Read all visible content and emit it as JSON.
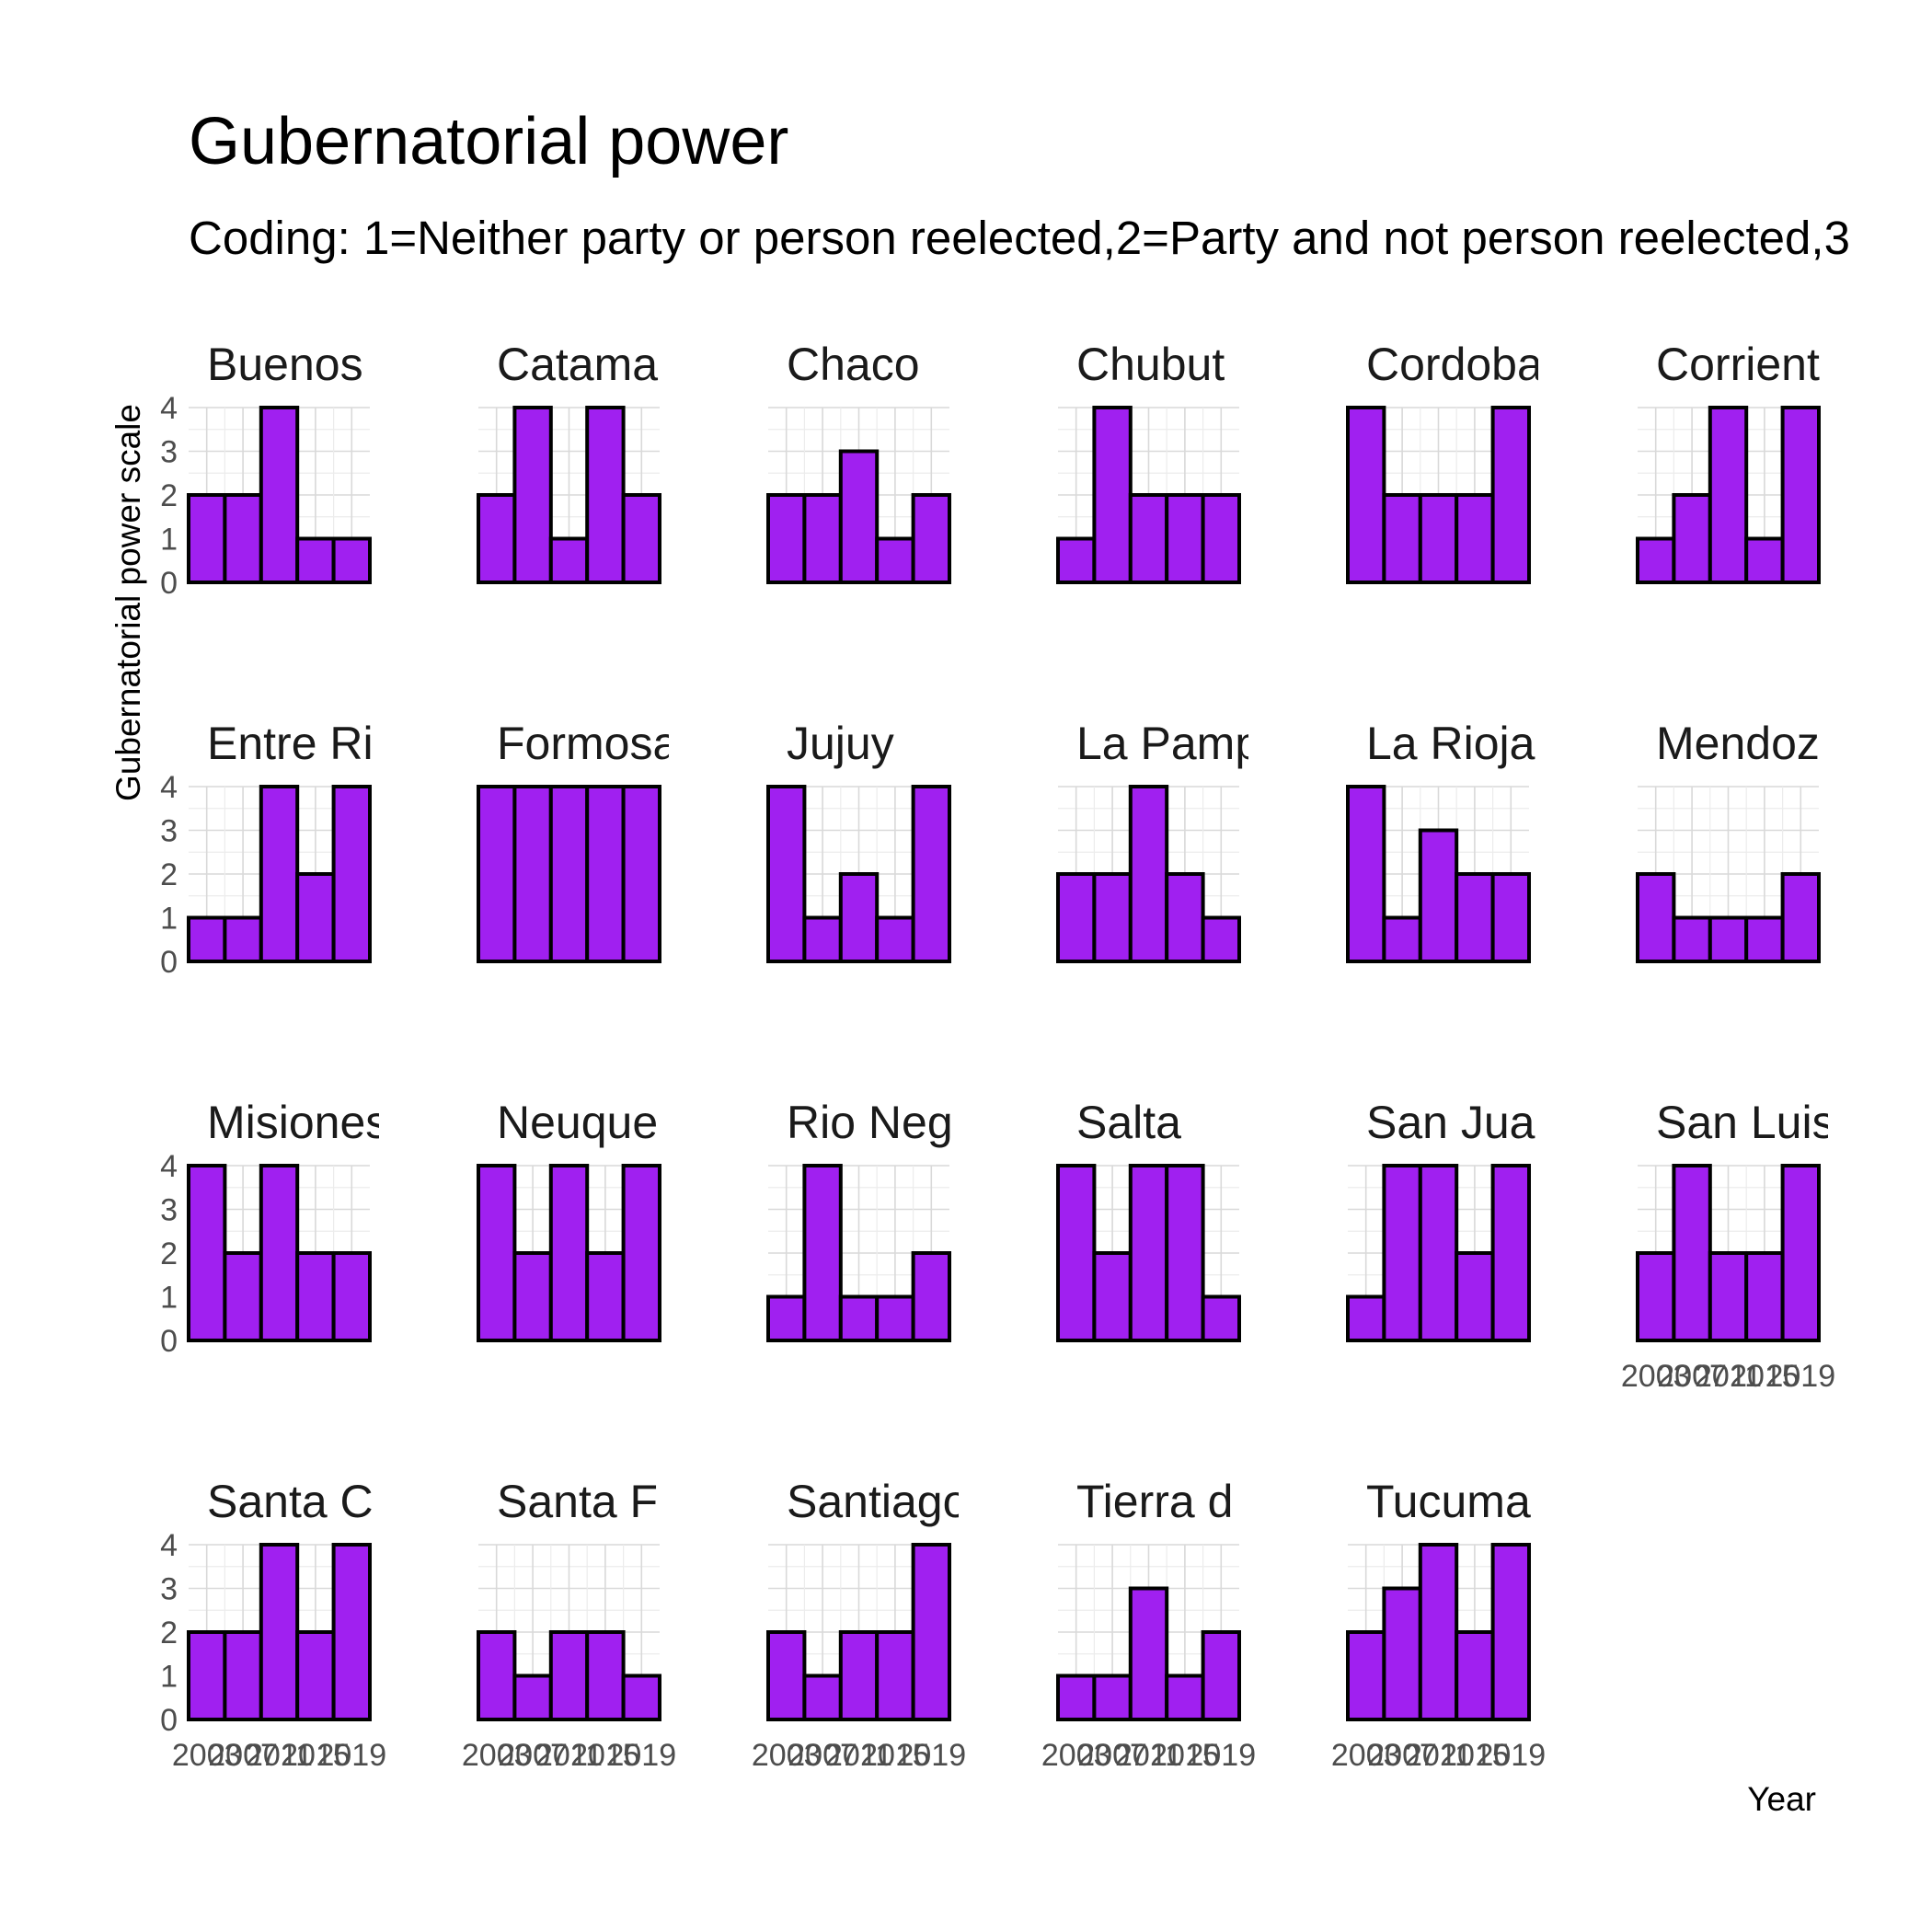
{
  "chart_data": {
    "type": "bar",
    "title": "Gubernatorial power",
    "subtitle": "Coding: 1=Neither party or person reelected,2=Party and not person reelected,3",
    "xlabel": "Year",
    "ylabel": "Gubernatorial power scale",
    "x": [
      2003,
      2007,
      2011,
      2015,
      2019
    ],
    "x_tick_labels": [
      "2003",
      "2007",
      "2011",
      "2015",
      "2019"
    ],
    "ylim": [
      0,
      4
    ],
    "y_ticks": [
      "0",
      "1",
      "2",
      "3",
      "4"
    ],
    "grid": true,
    "bar_color": "#A020F0",
    "bar_outline": "#000000",
    "panels": [
      {
        "label": "Buenos",
        "values": [
          2,
          2,
          4,
          1,
          1
        ]
      },
      {
        "label": "Catama",
        "values": [
          2,
          4,
          1,
          4,
          2
        ]
      },
      {
        "label": "Chaco",
        "values": [
          2,
          2,
          3,
          1,
          2
        ]
      },
      {
        "label": "Chubut",
        "values": [
          1,
          4,
          2,
          2,
          2
        ]
      },
      {
        "label": "Cordoba",
        "values": [
          4,
          2,
          2,
          2,
          4
        ]
      },
      {
        "label": "Corrient",
        "values": [
          1,
          2,
          4,
          1,
          4
        ]
      },
      {
        "label": "Entre Ri",
        "values": [
          1,
          1,
          4,
          2,
          4
        ]
      },
      {
        "label": "Formosa",
        "values": [
          4,
          4,
          4,
          4,
          4
        ]
      },
      {
        "label": "Jujuy",
        "values": [
          4,
          1,
          2,
          1,
          4
        ]
      },
      {
        "label": "La Pamp",
        "values": [
          2,
          2,
          4,
          2,
          1
        ]
      },
      {
        "label": "La Rioja",
        "values": [
          4,
          1,
          3,
          2,
          2
        ]
      },
      {
        "label": "Mendoz",
        "values": [
          2,
          1,
          1,
          1,
          2
        ]
      },
      {
        "label": "Misiones",
        "values": [
          4,
          2,
          4,
          2,
          2
        ]
      },
      {
        "label": "Neuque",
        "values": [
          4,
          2,
          4,
          2,
          4
        ]
      },
      {
        "label": "Rio Neg",
        "values": [
          1,
          4,
          1,
          1,
          2
        ]
      },
      {
        "label": "Salta",
        "values": [
          4,
          2,
          4,
          4,
          1
        ]
      },
      {
        "label": "San Jua",
        "values": [
          1,
          4,
          4,
          2,
          4
        ]
      },
      {
        "label": "San Luis",
        "values": [
          2,
          4,
          2,
          2,
          4
        ]
      },
      {
        "label": "Santa C",
        "values": [
          2,
          2,
          4,
          2,
          4
        ]
      },
      {
        "label": "Santa F",
        "values": [
          2,
          1,
          2,
          2,
          1
        ]
      },
      {
        "label": "Santiago",
        "values": [
          2,
          1,
          2,
          2,
          4
        ]
      },
      {
        "label": "Tierra d",
        "values": [
          1,
          1,
          3,
          1,
          2
        ]
      },
      {
        "label": "Tucuma",
        "values": [
          2,
          3,
          4,
          2,
          4
        ]
      }
    ]
  }
}
